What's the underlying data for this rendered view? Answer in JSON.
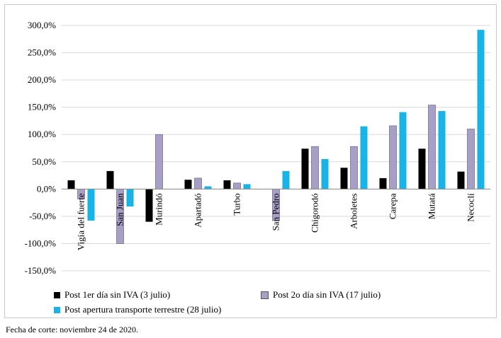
{
  "chart_data": {
    "type": "bar",
    "categories": [
      "Vigía del fuerte",
      "San Juan",
      "Murindó",
      "Apartadó",
      "Turbo",
      "San Pedro",
      "Chigorodó",
      "Arboletes",
      "Carepa",
      "Mutatá",
      "Necoclí"
    ],
    "series": [
      {
        "name": "Post 1er día sin IVA (3 julio)",
        "color": "#000000",
        "values": [
          16,
          33,
          -60,
          17,
          16,
          0,
          74,
          39,
          20,
          74,
          32
        ]
      },
      {
        "name": "Post 2o día sin IVA (17 julio)",
        "color": "#a79fc6",
        "values": [
          -18,
          -100,
          100,
          20,
          11,
          -58,
          78,
          78,
          116,
          154,
          110
        ]
      },
      {
        "name": "Post apertura transporte terrestre (28 julio)",
        "color": "#19b3e6",
        "values": [
          -58,
          -32,
          0,
          5,
          9,
          33,
          55,
          115,
          141,
          143,
          292
        ]
      }
    ],
    "ylim": [
      -150,
      300
    ],
    "yticks": [
      -150,
      -100,
      -50,
      0,
      50,
      100,
      150,
      200,
      250,
      300
    ],
    "ytick_labels": [
      "-150,0%",
      "-100,0%",
      "-50,0%",
      "0,0%",
      "50,0%",
      "100,0%",
      "150,0%",
      "200,0%",
      "250,0%",
      "300,0%"
    ],
    "grid": true,
    "legend_position": "bottom",
    "xlabel": "",
    "ylabel": ""
  },
  "footnote": "Fecha de corte: noviembre 24 de 2020."
}
